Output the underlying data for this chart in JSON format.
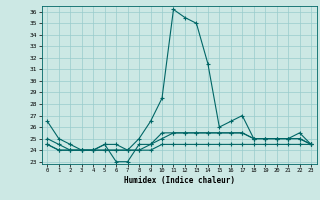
{
  "xlabel": "Humidex (Indice chaleur)",
  "bg_color": "#cce8e4",
  "grid_color": "#99cccc",
  "line_color": "#006666",
  "xlim": [
    -0.5,
    23.5
  ],
  "ylim": [
    22.8,
    36.5
  ],
  "yticks": [
    23,
    24,
    25,
    26,
    27,
    28,
    29,
    30,
    31,
    32,
    33,
    34,
    35,
    36
  ],
  "xticks": [
    0,
    1,
    2,
    3,
    4,
    5,
    6,
    7,
    8,
    9,
    10,
    11,
    12,
    13,
    14,
    15,
    16,
    17,
    18,
    19,
    20,
    21,
    22,
    23
  ],
  "series": [
    [
      26.5,
      25.0,
      24.5,
      24.0,
      24.0,
      24.5,
      24.5,
      24.0,
      25.0,
      26.5,
      28.5,
      36.2,
      35.5,
      35.0,
      31.5,
      26.0,
      26.5,
      27.0,
      25.0,
      25.0,
      25.0,
      25.0,
      25.5,
      24.5
    ],
    [
      24.5,
      24.0,
      24.0,
      24.0,
      24.0,
      24.5,
      23.0,
      23.0,
      24.5,
      24.5,
      25.5,
      25.5,
      25.5,
      25.5,
      25.5,
      25.5,
      25.5,
      25.5,
      25.0,
      25.0,
      25.0,
      25.0,
      25.0,
      24.5
    ],
    [
      25.0,
      24.5,
      24.0,
      24.0,
      24.0,
      24.0,
      24.0,
      24.0,
      24.0,
      24.5,
      25.0,
      25.5,
      25.5,
      25.5,
      25.5,
      25.5,
      25.5,
      25.5,
      25.0,
      25.0,
      25.0,
      25.0,
      25.0,
      24.5
    ],
    [
      24.5,
      24.0,
      24.0,
      24.0,
      24.0,
      24.0,
      24.0,
      24.0,
      24.0,
      24.0,
      24.5,
      24.5,
      24.5,
      24.5,
      24.5,
      24.5,
      24.5,
      24.5,
      24.5,
      24.5,
      24.5,
      24.5,
      24.5,
      24.5
    ]
  ]
}
